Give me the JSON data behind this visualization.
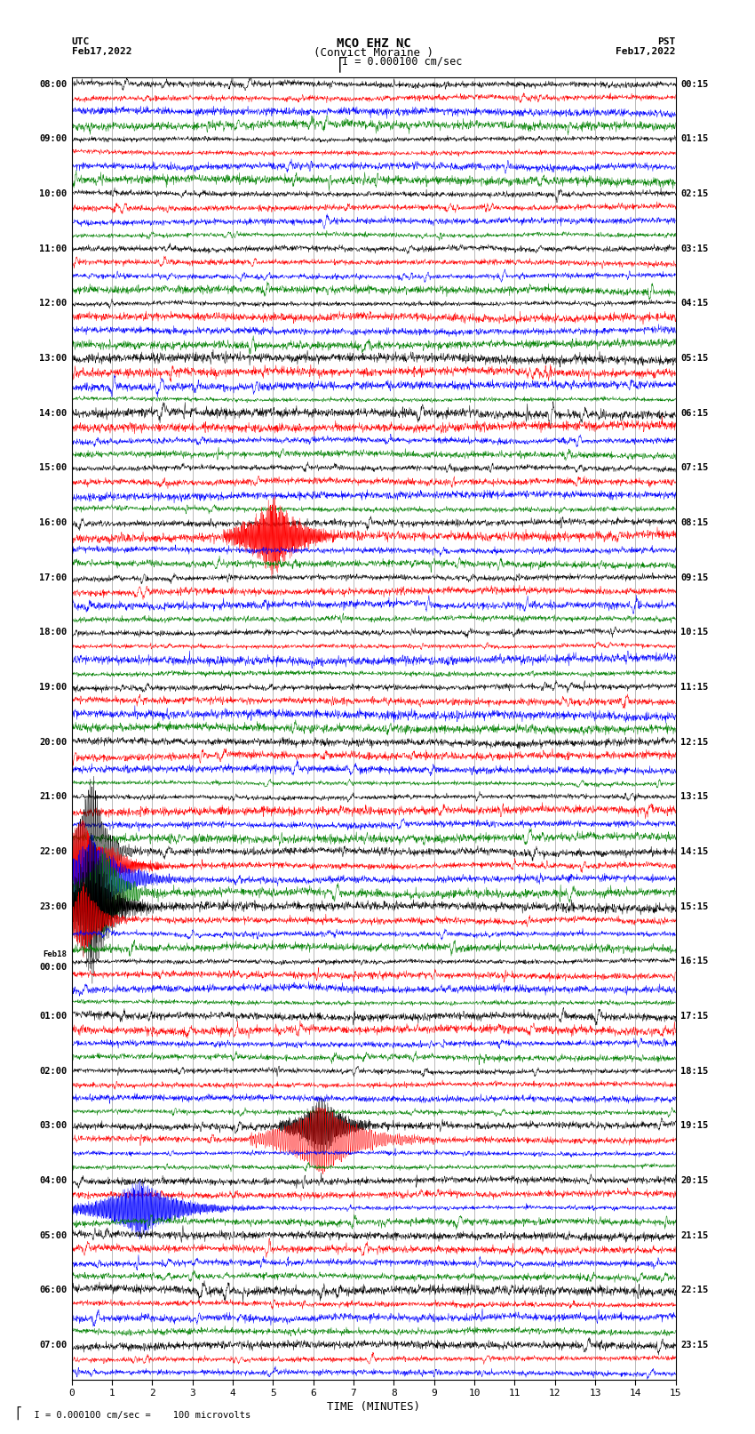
{
  "title_line1": "MCO EHZ NC",
  "title_line2": "(Convict Moraine )",
  "title_line3": "I = 0.000100 cm/sec",
  "left_header_line1": "UTC",
  "left_header_line2": "Feb17,2022",
  "right_header_line1": "PST",
  "right_header_line2": "Feb17,2022",
  "left_times_utc": [
    "08:00",
    "",
    "",
    "",
    "09:00",
    "",
    "",
    "",
    "10:00",
    "",
    "",
    "",
    "11:00",
    "",
    "",
    "",
    "12:00",
    "",
    "",
    "",
    "13:00",
    "",
    "",
    "",
    "14:00",
    "",
    "",
    "",
    "15:00",
    "",
    "",
    "",
    "16:00",
    "",
    "",
    "",
    "17:00",
    "",
    "",
    "",
    "18:00",
    "",
    "",
    "",
    "19:00",
    "",
    "",
    "",
    "20:00",
    "",
    "",
    "",
    "21:00",
    "",
    "",
    "",
    "22:00",
    "",
    "",
    "",
    "23:00",
    "",
    "",
    "",
    "Feb18\n00:00",
    "",
    "",
    "",
    "01:00",
    "",
    "",
    "",
    "02:00",
    "",
    "",
    "",
    "03:00",
    "",
    "",
    "",
    "04:00",
    "",
    "",
    "",
    "05:00",
    "",
    "",
    "",
    "06:00",
    "",
    "",
    "",
    "07:00",
    "",
    ""
  ],
  "right_times_pst": [
    "00:15",
    "",
    "",
    "",
    "01:15",
    "",
    "",
    "",
    "02:15",
    "",
    "",
    "",
    "03:15",
    "",
    "",
    "",
    "04:15",
    "",
    "",
    "",
    "05:15",
    "",
    "",
    "",
    "06:15",
    "",
    "",
    "",
    "07:15",
    "",
    "",
    "",
    "08:15",
    "",
    "",
    "",
    "09:15",
    "",
    "",
    "",
    "10:15",
    "",
    "",
    "",
    "11:15",
    "",
    "",
    "",
    "12:15",
    "",
    "",
    "",
    "13:15",
    "",
    "",
    "",
    "14:15",
    "",
    "",
    "",
    "15:15",
    "",
    "",
    "",
    "16:15",
    "",
    "",
    "",
    "17:15",
    "",
    "",
    "",
    "18:15",
    "",
    "",
    "",
    "19:15",
    "",
    "",
    "",
    "20:15",
    "",
    "",
    "",
    "21:15",
    "",
    "",
    "",
    "22:15",
    "",
    "",
    "",
    "23:15",
    "",
    ""
  ],
  "xlabel": "TIME (MINUTES)",
  "footnote": "  I = 0.000100 cm/sec =    100 microvolts",
  "xlim": [
    0,
    15
  ],
  "xticks": [
    0,
    1,
    2,
    3,
    4,
    5,
    6,
    7,
    8,
    9,
    10,
    11,
    12,
    13,
    14,
    15
  ],
  "num_traces": 95,
  "trace_colors_cycle": [
    "black",
    "red",
    "blue",
    "green"
  ],
  "background_color": "#ffffff",
  "grid_color": "#888888",
  "fig_width": 8.5,
  "fig_height": 16.13
}
